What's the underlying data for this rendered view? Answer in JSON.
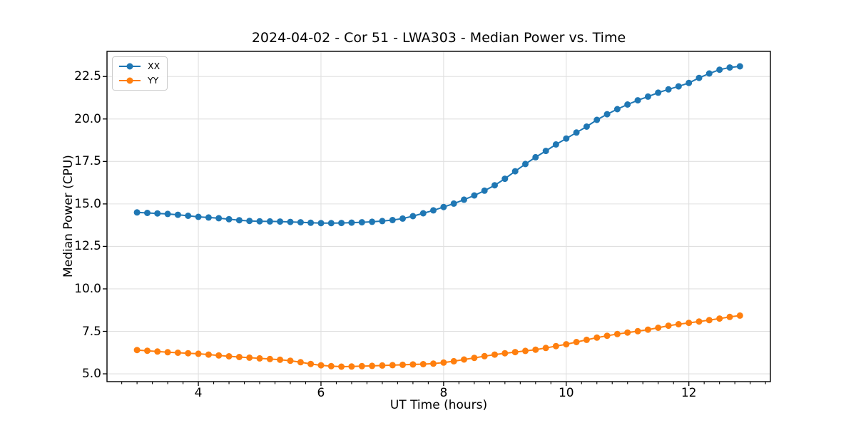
{
  "chart_data": {
    "type": "line",
    "title": "2024-04-02 - Cor 51 - LWA303 - Median Power vs. Time",
    "xlabel": "UT Time (hours)",
    "ylabel": "Median Power (CPU)",
    "xlim": [
      2.51,
      13.33
    ],
    "ylim": [
      4.54,
      23.98
    ],
    "xticks": [
      4,
      6,
      8,
      10,
      12
    ],
    "xtick_labels": [
      "4",
      "6",
      "8",
      "10",
      "12"
    ],
    "x_minor_tick_step": 0.25,
    "yticks": [
      5.0,
      7.5,
      10.0,
      12.5,
      15.0,
      17.5,
      20.0,
      22.5
    ],
    "ytick_labels": [
      "5.0",
      "7.5",
      "10.0",
      "12.5",
      "15.0",
      "17.5",
      "20.0",
      "22.5"
    ],
    "grid": true,
    "legend_position": "upper left",
    "marker": "circle",
    "x": [
      3.0,
      3.167,
      3.333,
      3.5,
      3.667,
      3.833,
      4.0,
      4.167,
      4.333,
      4.5,
      4.667,
      4.833,
      5.0,
      5.167,
      5.333,
      5.5,
      5.667,
      5.833,
      6.0,
      6.167,
      6.333,
      6.5,
      6.667,
      6.833,
      7.0,
      7.167,
      7.333,
      7.5,
      7.667,
      7.833,
      8.0,
      8.167,
      8.333,
      8.5,
      8.667,
      8.833,
      9.0,
      9.167,
      9.333,
      9.5,
      9.667,
      9.833,
      10.0,
      10.167,
      10.333,
      10.5,
      10.667,
      10.833,
      11.0,
      11.167,
      11.333,
      11.5,
      11.667,
      11.833,
      12.0,
      12.167,
      12.333,
      12.5,
      12.667,
      12.833
    ],
    "series": [
      {
        "name": "XX",
        "color": "#1f77b4",
        "values": [
          14.5,
          14.47,
          14.44,
          14.41,
          14.36,
          14.3,
          14.24,
          14.2,
          14.16,
          14.1,
          14.04,
          14.0,
          13.98,
          13.97,
          13.96,
          13.94,
          13.92,
          13.89,
          13.87,
          13.87,
          13.88,
          13.9,
          13.92,
          13.95,
          13.99,
          14.05,
          14.14,
          14.28,
          14.45,
          14.62,
          14.82,
          15.02,
          15.25,
          15.5,
          15.78,
          16.1,
          16.48,
          16.92,
          17.35,
          17.75,
          18.12,
          18.5,
          18.85,
          19.2,
          19.55,
          19.95,
          20.28,
          20.58,
          20.85,
          21.1,
          21.32,
          21.55,
          21.74,
          21.92,
          22.12,
          22.42,
          22.68,
          22.9,
          23.03,
          23.1
        ]
      },
      {
        "name": "YY",
        "color": "#ff7f0e",
        "values": [
          6.4,
          6.36,
          6.31,
          6.27,
          6.24,
          6.21,
          6.18,
          6.13,
          6.08,
          6.03,
          5.99,
          5.95,
          5.91,
          5.87,
          5.83,
          5.77,
          5.68,
          5.58,
          5.5,
          5.45,
          5.42,
          5.43,
          5.45,
          5.47,
          5.49,
          5.51,
          5.53,
          5.55,
          5.57,
          5.6,
          5.66,
          5.74,
          5.84,
          5.94,
          6.04,
          6.13,
          6.21,
          6.28,
          6.35,
          6.42,
          6.52,
          6.63,
          6.74,
          6.87,
          7.0,
          7.13,
          7.24,
          7.34,
          7.43,
          7.51,
          7.6,
          7.71,
          7.83,
          7.92,
          8.0,
          8.08,
          8.16,
          8.25,
          8.35,
          8.43
        ]
      }
    ]
  },
  "colors": {
    "grid": "#e0e0e0",
    "spine": "#000000",
    "tick": "#000000",
    "background": "#ffffff"
  }
}
